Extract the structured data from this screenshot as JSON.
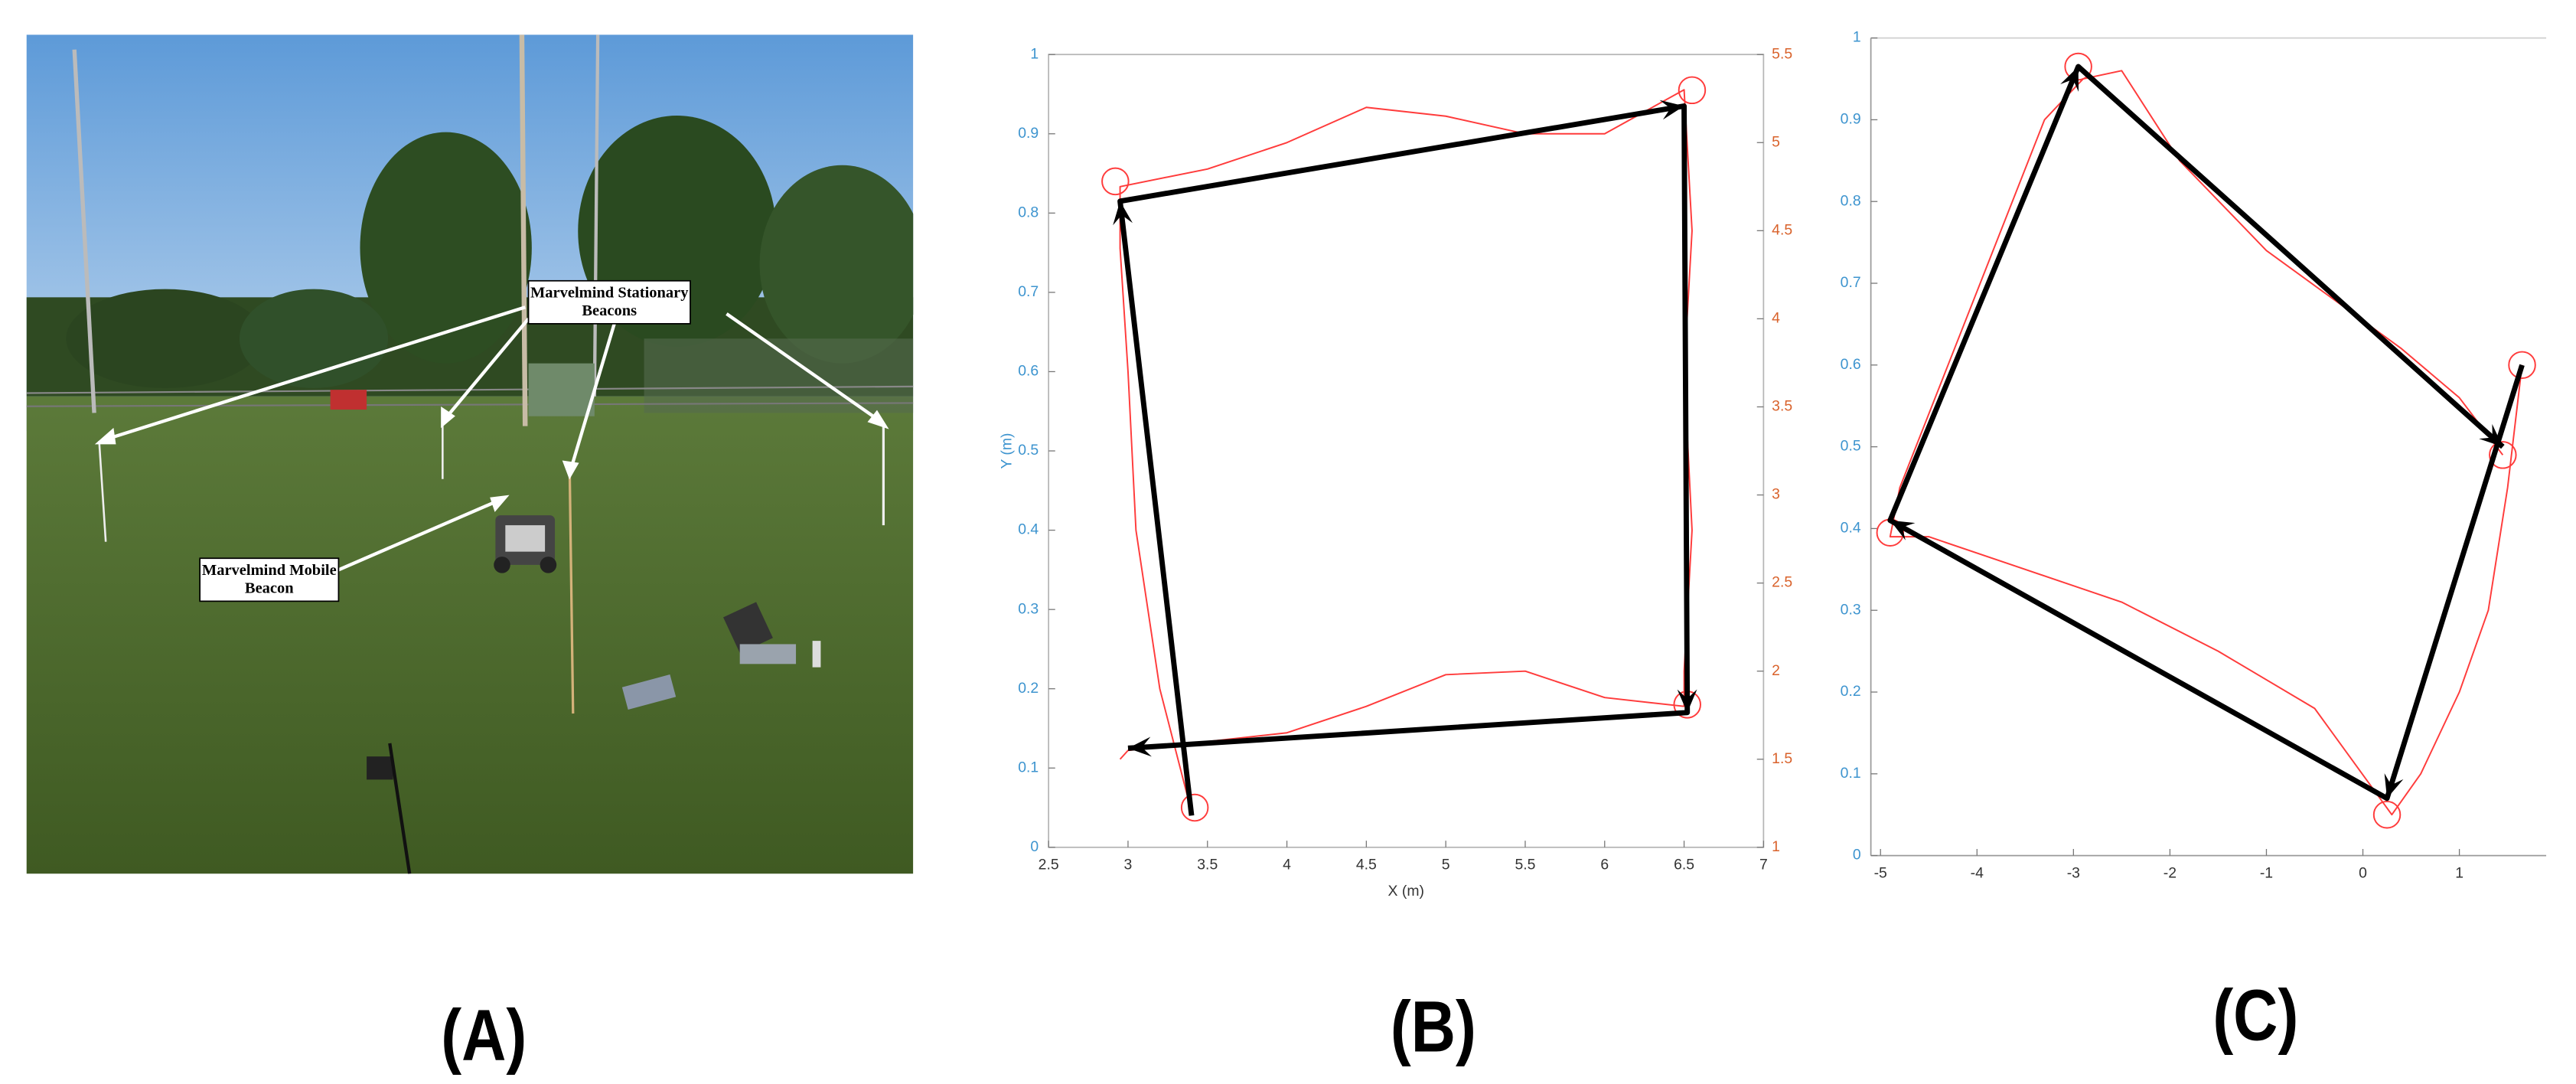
{
  "panel_labels": [
    "(A)",
    "(B)",
    "(C)"
  ],
  "photo": {
    "annotations": [
      {
        "lines": [
          "Marvelmind Stationary",
          "Beacons"
        ]
      },
      {
        "lines": [
          "Marvelmind Mobile",
          "Beacon"
        ]
      }
    ]
  },
  "chart_data": [
    {
      "type": "line",
      "xlabel": "X (m)",
      "ylabel": "Y (m)",
      "xlim": [
        2.5,
        7
      ],
      "xticks": [
        2.5,
        3,
        3.5,
        4,
        4.5,
        5,
        5.5,
        6,
        6.5,
        7
      ],
      "ylim": [
        0,
        1
      ],
      "yticks": [
        0,
        0.1,
        0.2,
        0.3,
        0.4,
        0.5,
        0.6,
        0.7,
        0.8,
        0.9,
        1
      ],
      "y2lim": [
        1,
        5.5
      ],
      "y2ticks": [
        1,
        1.5,
        2,
        2.5,
        3,
        3.5,
        4,
        4.5,
        5,
        5.5
      ],
      "y_axis_color": "#3d94cf",
      "y2_axis_color": "#d9622b",
      "box": true,
      "series": [
        {
          "color": "#ff3b3b",
          "axis": "y2",
          "x": [
            3.4,
            3.2,
            3.05,
            3.0,
            2.95,
            2.95,
            3.5,
            4.0,
            4.5,
            5.0,
            5.5,
            6.0,
            6.5,
            6.55,
            6.5,
            6.55,
            6.5,
            6.5,
            6.0,
            5.5,
            5.0,
            4.5,
            4.0,
            3.5,
            3.0,
            2.95
          ],
          "values": [
            1.2,
            1.9,
            2.8,
            3.7,
            4.4,
            4.75,
            4.85,
            5.0,
            5.2,
            5.15,
            5.05,
            5.05,
            5.3,
            4.5,
            3.7,
            2.8,
            2.0,
            1.8,
            1.85,
            2.0,
            1.98,
            1.8,
            1.65,
            1.6,
            1.55,
            1.5
          ]
        },
        {
          "color": "#ff3b3b",
          "marker": "circle",
          "x": [
            3.42,
            2.92,
            6.55,
            6.52
          ],
          "values": [
            0.05,
            0.84,
            0.955,
            0.18
          ]
        },
        {
          "color": "#000000",
          "arrows": true,
          "x": [
            3.4,
            2.95,
            6.5,
            6.52,
            3.0
          ],
          "values": [
            0.04,
            0.815,
            0.935,
            0.17,
            0.125
          ]
        }
      ]
    },
    {
      "type": "line",
      "xlim": [
        -5.1,
        1.9
      ],
      "xticks": [
        -5,
        -4,
        -3,
        -2,
        -1,
        0,
        1
      ],
      "ylim": [
        0,
        1
      ],
      "yticks": [
        0,
        0.1,
        0.2,
        0.3,
        0.4,
        0.5,
        0.6,
        0.7,
        0.8,
        0.9,
        1
      ],
      "y_axis_color": "#3d94cf",
      "box": false,
      "series": [
        {
          "color": "#ff3b3b",
          "x": [
            1.65,
            1.5,
            1.3,
            1.0,
            0.6,
            0.3,
            -0.5,
            -1.5,
            -2.5,
            -3.5,
            -4.5,
            -4.9,
            -4.8,
            -4.3,
            -3.8,
            -3.3,
            -2.9,
            -2.5,
            -1.9,
            -1.0,
            -0.3,
            0.4,
            1.0,
            1.45
          ],
          "values": [
            0.6,
            0.45,
            0.3,
            0.2,
            0.1,
            0.05,
            0.18,
            0.25,
            0.31,
            0.35,
            0.39,
            0.39,
            0.45,
            0.6,
            0.75,
            0.9,
            0.95,
            0.96,
            0.85,
            0.74,
            0.68,
            0.62,
            0.56,
            0.49
          ]
        },
        {
          "color": "#ff3b3b",
          "marker": "circle",
          "x": [
            1.65,
            0.25,
            -4.9,
            -2.95,
            1.45
          ],
          "values": [
            0.6,
            0.05,
            0.395,
            0.965,
            0.49
          ]
        },
        {
          "color": "#000000",
          "arrows": true,
          "x": [
            1.65,
            0.25,
            -4.9,
            -2.95,
            1.45
          ],
          "values": [
            0.6,
            0.07,
            0.41,
            0.965,
            0.5
          ]
        }
      ]
    }
  ]
}
